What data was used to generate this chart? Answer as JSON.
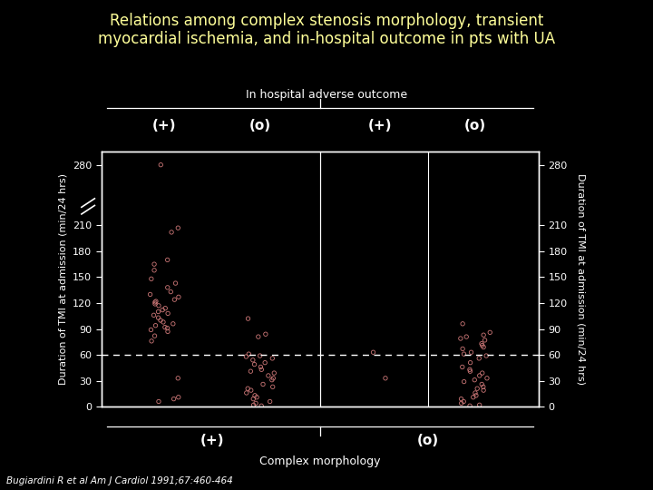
{
  "title": "Relations among complex stenosis morphology, transient\nmyocardial ischemia, and in-hospital outcome in pts with UA",
  "title_color": "#FFFF99",
  "bg_color": "#000000",
  "text_color": "#FFFFFF",
  "dot_color": "#CC7777",
  "ylabel": "Duration of TMI at admission (min/24 hrs)",
  "xlabel": "Complex morphology",
  "top_label": "In hospital adverse outcome",
  "col_labels_top": [
    "(+)",
    "(o)",
    "(+)",
    "(o)"
  ],
  "col_labels_bottom": [
    "(+)",
    "(o)"
  ],
  "yticks": [
    0,
    30,
    60,
    90,
    120,
    150,
    180,
    210,
    280
  ],
  "ymax": 295,
  "hline_y": 60,
  "citation": "Bugiardini R et al Am J Cardiol 1991;67:460-464",
  "col1_data": [
    280,
    207,
    202,
    170,
    165,
    158,
    148,
    143,
    138,
    133,
    130,
    127,
    124,
    122,
    121,
    119,
    117,
    114,
    112,
    110,
    108,
    106,
    103,
    100,
    98,
    96,
    94,
    92,
    91,
    89,
    87,
    82,
    76,
    33,
    11,
    9,
    6
  ],
  "col2_data": [
    102,
    84,
    81,
    61,
    59,
    58,
    56,
    54,
    51,
    49,
    46,
    43,
    41,
    39,
    36,
    33,
    31,
    26,
    23,
    21,
    19,
    16,
    13,
    11,
    9,
    6,
    4,
    2,
    1
  ],
  "col3_data": [
    63,
    33
  ],
  "col4_data": [
    96,
    86,
    83,
    81,
    79,
    77,
    73,
    71,
    69,
    67,
    63,
    61,
    59,
    56,
    51,
    46,
    43,
    41,
    39,
    36,
    33,
    31,
    29,
    26,
    23,
    21,
    19,
    16,
    13,
    11,
    9,
    6,
    4,
    2,
    1
  ]
}
